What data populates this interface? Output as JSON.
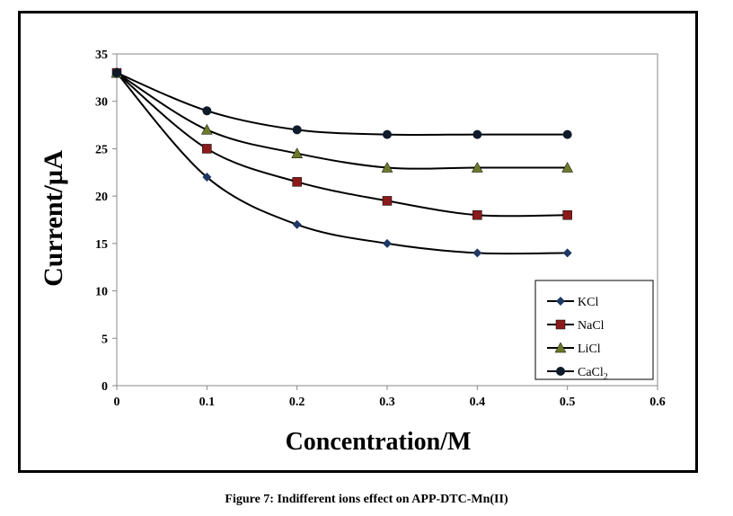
{
  "chart_data": {
    "type": "line",
    "xlabel": "Concentration/M",
    "ylabel": "Current/µA",
    "xlim": [
      0,
      0.6
    ],
    "ylim": [
      0,
      35
    ],
    "xticks": [
      0,
      0.1,
      0.2,
      0.3,
      0.4,
      0.5,
      0.6
    ],
    "yticks": [
      0,
      5,
      10,
      15,
      20,
      25,
      30,
      35
    ],
    "x": [
      0,
      0.1,
      0.2,
      0.3,
      0.4,
      0.5
    ],
    "grid": false,
    "legend_position": "bottom-right",
    "series": [
      {
        "name": "KCl",
        "marker": "diamond",
        "color": "#1f3864",
        "values": [
          33,
          22,
          17,
          15,
          14,
          14
        ]
      },
      {
        "name": "NaCl",
        "marker": "square",
        "color": "#8b1a1a",
        "values": [
          33,
          25,
          21.5,
          19.5,
          18,
          18
        ]
      },
      {
        "name": "LiCl",
        "marker": "triangle",
        "color": "#6b7a2a",
        "values": [
          33,
          27,
          24.5,
          23,
          23,
          23
        ]
      },
      {
        "name": "CaCl",
        "name_subscript": "2",
        "marker": "circle",
        "color": "#0d1b2a",
        "values": [
          33,
          29,
          27,
          26.5,
          26.5,
          26.5
        ]
      }
    ]
  },
  "caption": "Figure 7: Indifferent ions effect on APP-DTC-Mn(II)"
}
